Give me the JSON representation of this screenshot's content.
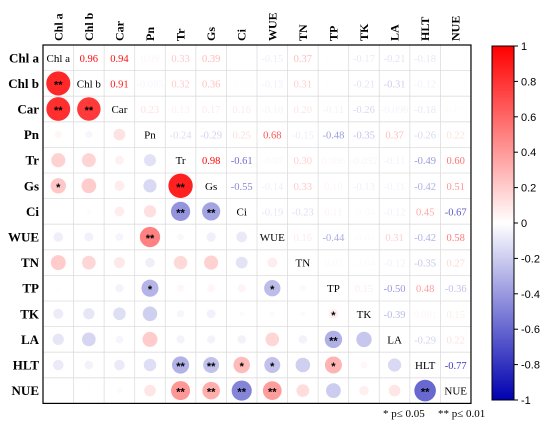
{
  "chart_data": {
    "type": "heatmap",
    "title": "",
    "xlabel": "",
    "ylabel": "",
    "variables": [
      "Chl a",
      "Chl b",
      "Car",
      "Pn",
      "Tr",
      "Gs",
      "Ci",
      "WUE",
      "TN",
      "TP",
      "TK",
      "LA",
      "HLT",
      "NUE"
    ],
    "upper": [
      [
        "0.96",
        "0.94",
        "0.09",
        "0.33",
        "0.39",
        "0.009",
        "-0.15",
        "0.37",
        "-0.02",
        "-0.17",
        "-0.21",
        "-0.18",
        "-0.01"
      ],
      [
        "0.91",
        "-0.085",
        "0.32",
        "0.36",
        "-0.03",
        "-0.13",
        "0.31",
        "-0.01",
        "-0.21",
        "-0.31",
        "-0.12",
        "-0.01"
      ],
      [
        "0.23",
        "0.13",
        "0.17",
        "0.16",
        "-0.10",
        "0.20",
        "-0.11",
        "-0.26",
        "-0.096",
        "-0.18",
        "0.05"
      ],
      [
        "-0.24",
        "-0.29",
        "0.25",
        "0.68",
        "-0.15",
        "-0.48",
        "-0.35",
        "0.37",
        "-0.26",
        "0.22"
      ],
      [
        "0.98",
        "-0.61",
        "-0.07",
        "0.30",
        "0.086",
        "-0.092",
        "-0.11",
        "-0.49",
        "0.60"
      ],
      [
        "-0.55",
        "-0.14",
        "0.33",
        "0.10",
        "-0.13",
        "-0.11",
        "-0.42",
        "0.51"
      ],
      [
        "-0.19",
        "-0.23",
        "0.11",
        "-0.04",
        "-0.12",
        "0.45",
        "-0.67"
      ],
      [
        "0.16",
        "-0.44",
        "-0.04",
        "0.31",
        "-0.42",
        "0.58"
      ],
      [
        "0.07",
        "-0.04",
        "-0.12",
        "-0.35",
        "0.27"
      ],
      [
        "0.15",
        "-0.50",
        "0.48",
        "-0.36"
      ],
      [
        "-0.39",
        "0.081",
        "0.15"
      ],
      [
        "-0.29",
        "0.22"
      ],
      [
        "-0.77"
      ]
    ],
    "significance": [
      {
        "row": 2,
        "col": 1,
        "label": "**"
      },
      {
        "row": 3,
        "col": 1,
        "label": "**"
      },
      {
        "row": 3,
        "col": 2,
        "label": "**"
      },
      {
        "row": 6,
        "col": 1,
        "label": "*"
      },
      {
        "row": 6,
        "col": 5,
        "label": "**"
      },
      {
        "row": 7,
        "col": 5,
        "label": "**"
      },
      {
        "row": 7,
        "col": 6,
        "label": "**"
      },
      {
        "row": 8,
        "col": 4,
        "label": "**"
      },
      {
        "row": 10,
        "col": 4,
        "label": "*"
      },
      {
        "row": 10,
        "col": 8,
        "label": "*"
      },
      {
        "row": 11,
        "col": 10,
        "label": "*"
      },
      {
        "row": 12,
        "col": 10,
        "label": "**"
      },
      {
        "row": 13,
        "col": 5,
        "label": "**"
      },
      {
        "row": 13,
        "col": 6,
        "label": "**"
      },
      {
        "row": 13,
        "col": 7,
        "label": "*"
      },
      {
        "row": 13,
        "col": 8,
        "label": "*"
      },
      {
        "row": 13,
        "col": 10,
        "label": "*"
      },
      {
        "row": 14,
        "col": 5,
        "label": "**"
      },
      {
        "row": 14,
        "col": 6,
        "label": "**"
      },
      {
        "row": 14,
        "col": 7,
        "label": "**"
      },
      {
        "row": 14,
        "col": 8,
        "label": "**"
      },
      {
        "row": 14,
        "col": 13,
        "label": "**"
      }
    ],
    "colorbar": {
      "range": [
        -1,
        1
      ],
      "ticks": [
        "1",
        "0.8",
        "0.6",
        "0.4",
        "0.2",
        "0",
        "-0.2",
        "-0.4",
        "-0.6",
        "-0.8",
        "-1"
      ],
      "colors": {
        "positive": "#ff0000",
        "zero": "#ffffff",
        "negative": "#0000b0"
      }
    },
    "footnote": {
      "single": "* p≤ 0.05",
      "double": "** p≤ 0.01"
    }
  }
}
